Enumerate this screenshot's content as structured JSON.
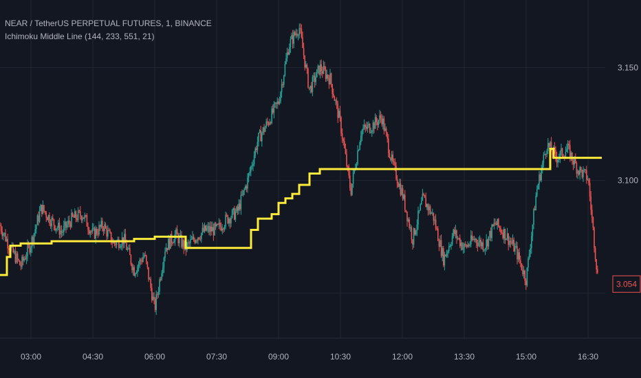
{
  "header": {
    "symbol_line": "NEAR / TetherUS PERPETUAL FUTURES, 1, BINANCE",
    "indicator_line": "Ichimoku Middle Line (144, 233, 551, 21)"
  },
  "colors": {
    "background": "#131722",
    "grid": "#232733",
    "axis_text": "#b2b5be",
    "up_candle": "#26a69a",
    "down_candle": "#ef5350",
    "indicator_line": "#ffeb3b",
    "price_label": "#ef5350"
  },
  "chart_data": {
    "type": "line",
    "description_series": [
      "price",
      "ichimoku_middle_line"
    ],
    "x_ticks": [
      "03:00",
      "04:30",
      "06:00",
      "07:30",
      "09:00",
      "10:30",
      "12:00",
      "13:30",
      "15:00",
      "16:30"
    ],
    "y_ticks": [
      "3.150",
      "3.100"
    ],
    "ylim": [
      3.03,
      3.18
    ],
    "last_price": "3.054",
    "series": [
      {
        "kind": "price",
        "x": [
          "02:15",
          "02:30",
          "02:45",
          "03:00",
          "03:15",
          "03:30",
          "03:45",
          "04:00",
          "04:15",
          "04:30",
          "04:45",
          "05:00",
          "05:15",
          "05:30",
          "05:45",
          "06:00",
          "06:15",
          "06:30",
          "06:45",
          "07:00",
          "07:15",
          "07:30",
          "07:45",
          "08:00",
          "08:15",
          "08:30",
          "08:45",
          "09:00",
          "09:15",
          "09:30",
          "09:45",
          "10:00",
          "10:15",
          "10:30",
          "10:45",
          "11:00",
          "11:15",
          "11:30",
          "11:45",
          "12:00",
          "12:15",
          "12:30",
          "12:45",
          "13:00",
          "13:15",
          "13:30",
          "13:45",
          "14:00",
          "14:15",
          "14:30",
          "14:45",
          "15:00",
          "15:15",
          "15:30",
          "15:45",
          "16:00",
          "16:15",
          "16:30",
          "16:45"
        ],
        "values": [
          3.08,
          3.07,
          3.062,
          3.072,
          3.088,
          3.082,
          3.077,
          3.083,
          3.085,
          3.076,
          3.08,
          3.072,
          3.074,
          3.06,
          3.067,
          3.043,
          3.07,
          3.076,
          3.07,
          3.075,
          3.078,
          3.078,
          3.083,
          3.086,
          3.1,
          3.118,
          3.126,
          3.135,
          3.16,
          3.168,
          3.14,
          3.15,
          3.145,
          3.125,
          3.095,
          3.122,
          3.124,
          3.128,
          3.108,
          3.094,
          3.074,
          3.092,
          3.084,
          3.065,
          3.077,
          3.07,
          3.074,
          3.071,
          3.081,
          3.076,
          3.069,
          3.056,
          3.095,
          3.116,
          3.11,
          3.114,
          3.105,
          3.101,
          3.054
        ]
      },
      {
        "kind": "ichimoku_middle_line",
        "x": [
          "02:15",
          "02:20",
          "02:25",
          "02:30",
          "02:45",
          "03:00",
          "03:30",
          "04:00",
          "04:30",
          "05:00",
          "05:30",
          "05:45",
          "06:00",
          "06:15",
          "06:30",
          "06:45",
          "07:00",
          "07:30",
          "07:45",
          "08:00",
          "08:10",
          "08:20",
          "08:30",
          "08:40",
          "08:50",
          "09:00",
          "09:10",
          "09:20",
          "09:30",
          "09:45",
          "10:00",
          "10:30",
          "11:00",
          "12:00",
          "13:00",
          "14:00",
          "15:00",
          "15:30",
          "15:35",
          "15:40",
          "15:45",
          "16:00",
          "16:30",
          "16:50"
        ],
        "values": [
          3.058,
          3.058,
          3.066,
          3.071,
          3.072,
          3.072,
          3.073,
          3.073,
          3.073,
          3.073,
          3.074,
          3.074,
          3.075,
          3.075,
          3.075,
          3.07,
          3.07,
          3.07,
          3.07,
          3.07,
          3.07,
          3.078,
          3.083,
          3.083,
          3.085,
          3.09,
          3.092,
          3.094,
          3.098,
          3.103,
          3.105,
          3.105,
          3.105,
          3.105,
          3.105,
          3.105,
          3.105,
          3.105,
          3.114,
          3.11,
          3.11,
          3.11,
          3.11,
          3.11
        ]
      }
    ]
  }
}
